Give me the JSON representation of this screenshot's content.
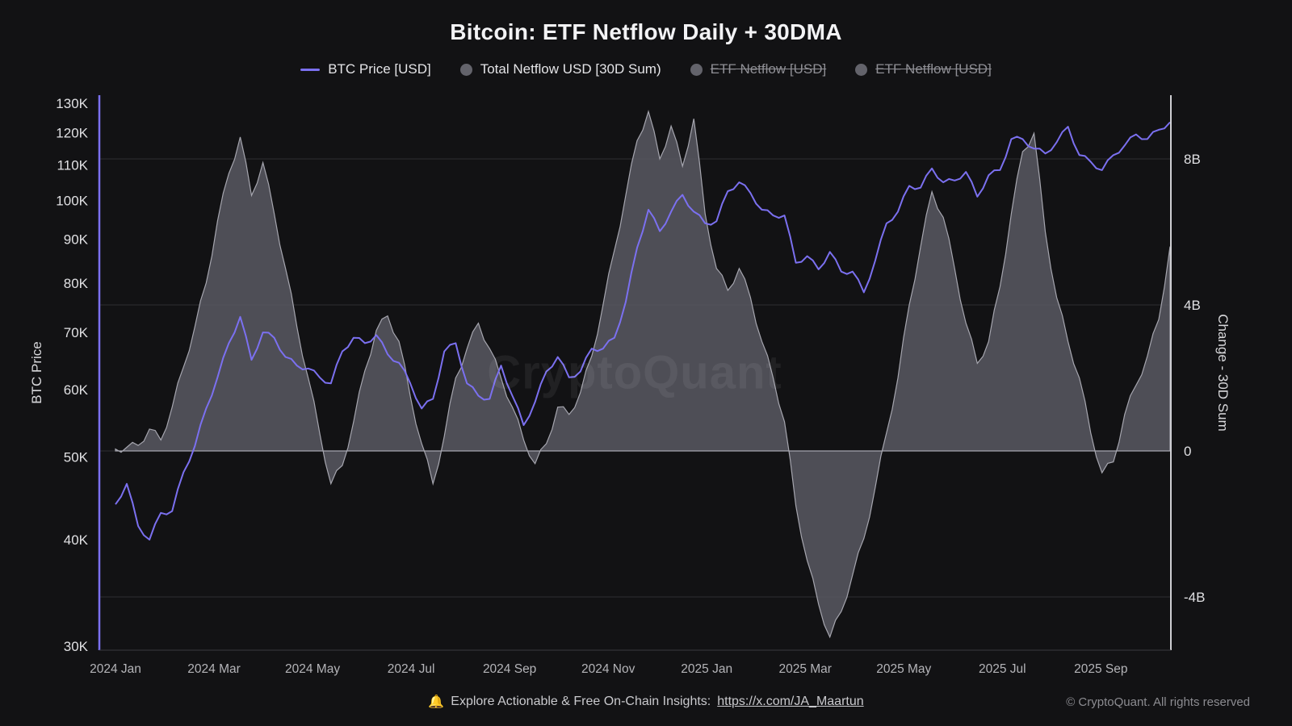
{
  "title": "Bitcoin: ETF Netflow Daily + 30DMA",
  "legend": {
    "items": [
      {
        "label": "BTC Price [USD]",
        "marker": "line",
        "enabled": true
      },
      {
        "label": "Total Netflow USD [30D Sum)",
        "marker": "dot",
        "enabled": true
      },
      {
        "label": "ETF Netflow [USD]",
        "marker": "dot",
        "enabled": false
      },
      {
        "label": "ETF Netflow [USD]",
        "marker": "dot",
        "enabled": false
      }
    ]
  },
  "watermark": "CryptoQuant",
  "footer": {
    "bell": "🔔",
    "text": "Explore Actionable & Free On-Chain Insights:",
    "link": "https://x.com/JA_Maartun",
    "copyright": "© CryptoQuant. All rights reserved"
  },
  "colors": {
    "background": "#121214",
    "accent_purple": "#7b70f0",
    "area_fill": "#55555d",
    "area_stroke": "#a6a6af",
    "grid": "#2d2d32",
    "tick_text": "#e0e0e3",
    "x_tick_text": "#b4b4b8",
    "right_axis_line": "#cfcfd3",
    "bottom_axis_line": "#3a3a3f",
    "legend_dot": "#63636b",
    "muted_text": "#8f8f95"
  },
  "chart_data": {
    "type": "line",
    "title": "Bitcoin: ETF Netflow Daily + 30DMA",
    "x_start": "2024-01-01",
    "x_step_days": 7,
    "x_ticks": [
      "2024 Jan",
      "2024 Mar",
      "2024 May",
      "2024 Jul",
      "2024 Sep",
      "2024 Nov",
      "2025 Jan",
      "2025 Mar",
      "2025 May",
      "2025 Jul",
      "2025 Sep"
    ],
    "x_tick_months": [
      0,
      2,
      4,
      6,
      8,
      10,
      12,
      14,
      16,
      18,
      20
    ],
    "left_axis": {
      "label": "BTC Price",
      "scale": "log",
      "ticks": [
        "130K",
        "120K",
        "110K",
        "100K",
        "90K",
        "80K",
        "70K",
        "60K",
        "50K",
        "40K",
        "30K"
      ],
      "tick_values": [
        130,
        120,
        110,
        100,
        90,
        80,
        70,
        60,
        50,
        40,
        30
      ]
    },
    "right_axis": {
      "label": "Change - 30D Sum",
      "scale": "linear",
      "ticks": [
        "8B",
        "4B",
        "0",
        "-4B"
      ],
      "tick_values": [
        8,
        4,
        0,
        -4
      ]
    },
    "series": [
      {
        "name": "BTC Price [USD]",
        "axis": "left",
        "unit": "thousand USD",
        "style": "line",
        "values": [
          44,
          46.5,
          41.5,
          40,
          43,
          43.2,
          48,
          51.5,
          57,
          62,
          68,
          73,
          65,
          70,
          69,
          65.5,
          64,
          63.5,
          62,
          61,
          66.5,
          69,
          68,
          69.5,
          66,
          64.5,
          61,
          57,
          58.5,
          66.5,
          68,
          61,
          59,
          58.5,
          64,
          59,
          54.5,
          58,
          63,
          65.5,
          62,
          63,
          67,
          67,
          69,
          76,
          88,
          97.5,
          92,
          97,
          101.5,
          97,
          94,
          94.5,
          102.5,
          105,
          102,
          97.5,
          96,
          96,
          84.5,
          86,
          83,
          87,
          82.5,
          82.5,
          78,
          85,
          94,
          97,
          104,
          103.5,
          109,
          105,
          105.5,
          108,
          101,
          107,
          108.5,
          118,
          118,
          115,
          113.5,
          117,
          122,
          113,
          111,
          108.5,
          113,
          116,
          119.5,
          118,
          121,
          123.5
        ]
      },
      {
        "name": "Total Netflow USD [30D Sum]",
        "axis": "right",
        "unit": "billion USD",
        "style": "area",
        "values": [
          0.05,
          0.1,
          0.15,
          0.6,
          0.3,
          1.2,
          2.3,
          3.4,
          4.6,
          6.3,
          7.6,
          8.6,
          7,
          7.9,
          6.5,
          5,
          3.4,
          2,
          0.5,
          -0.9,
          -0.4,
          0.8,
          2.2,
          3.3,
          3.7,
          3,
          1.5,
          0.2,
          -0.9,
          0.4,
          2,
          2.8,
          3.5,
          2.8,
          2,
          1.2,
          0.3,
          -0.35,
          0.2,
          1.2,
          1,
          1.6,
          2.6,
          4,
          5.5,
          7,
          8.5,
          9.3,
          8,
          8.9,
          7.8,
          9.1,
          6.5,
          5,
          4.4,
          5,
          4.2,
          3,
          2,
          0.8,
          -1.5,
          -3,
          -4.2,
          -5.1,
          -4.4,
          -3.4,
          -2.4,
          -1,
          0.5,
          2,
          4,
          5.6,
          7.1,
          6.4,
          5,
          3.5,
          2.4,
          3,
          4.5,
          6.5,
          8.2,
          8.7,
          6,
          4.2,
          3,
          2,
          0.5,
          -0.6,
          -0.3,
          1,
          1.8,
          2.6,
          3.6,
          5.6
        ]
      }
    ]
  }
}
